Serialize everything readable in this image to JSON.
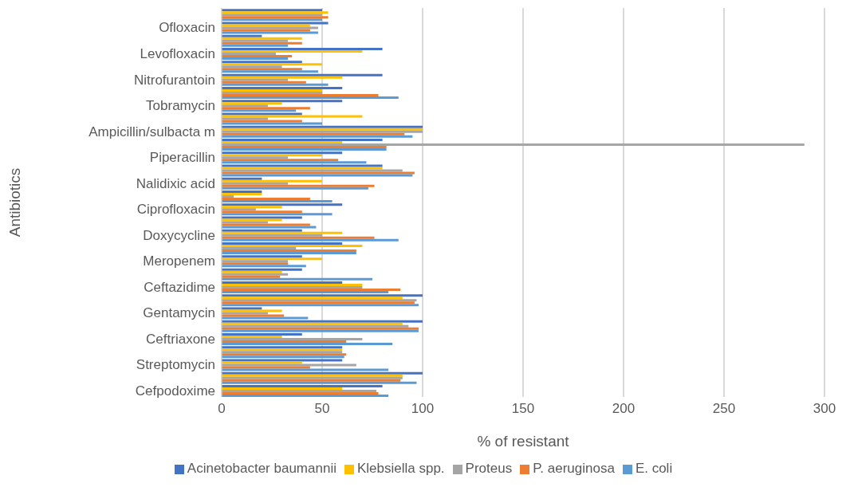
{
  "chart_data": {
    "type": "bar",
    "orientation": "horizontal",
    "xlabel": "% of resistant",
    "ylabel": "Antibiotics",
    "categories": [
      null,
      "Ofloxacin",
      null,
      "Levofloxacin",
      null,
      "Nitrofurantoin",
      null,
      "Tobramycin",
      null,
      "Ampicillin/sulbacta m",
      null,
      "Piperacillin",
      null,
      "Nalidixic acid",
      null,
      "Ciprofloxacin",
      null,
      "Doxycycline",
      null,
      "Meropenem",
      null,
      "Ceftazidime",
      null,
      "Gentamycin",
      null,
      "Ceftriaxone",
      null,
      "Streptomycin",
      null,
      "Cefpodoxime"
    ],
    "series": [
      {
        "name": "Acinetobacter baumannii",
        "color": "#4472c4",
        "values": [
          50,
          53,
          20,
          80,
          40,
          80,
          60,
          60,
          40,
          100,
          80,
          60,
          80,
          20,
          20,
          60,
          40,
          40,
          60,
          40,
          40,
          60,
          100,
          20,
          100,
          40,
          60,
          60,
          100,
          80
        ]
      },
      {
        "name": "Klebsiella spp.",
        "color": "#ffc000",
        "values": [
          53,
          44,
          40,
          70,
          50,
          60,
          50,
          30,
          70,
          100,
          60,
          50,
          80,
          50,
          20,
          30,
          30,
          60,
          70,
          50,
          30,
          70,
          90,
          30,
          90,
          30,
          60,
          40,
          90,
          60
        ]
      },
      {
        "name": "Proteus",
        "color": "#a5a5a5",
        "values": [
          50,
          48,
          33,
          27,
          30,
          33,
          50,
          23,
          23,
          100,
          290,
          33,
          90,
          33,
          6,
          17,
          23,
          50,
          37,
          33,
          33,
          70,
          97,
          23,
          93,
          70,
          60,
          67,
          90,
          77
        ]
      },
      {
        "name": "P. aeruginosa",
        "color": "#ed7d31",
        "values": [
          53,
          44,
          40,
          35,
          40,
          42,
          78,
          44,
          40,
          91,
          82,
          58,
          96,
          76,
          44,
          40,
          44,
          76,
          67,
          33,
          29,
          89,
          96,
          31,
          98,
          62,
          62,
          44,
          89,
          78
        ]
      },
      {
        "name": "E. coli",
        "color": "#5b9bd5",
        "values": [
          50,
          48,
          33,
          33,
          48,
          53,
          88,
          37,
          50,
          95,
          82,
          72,
          95,
          73,
          55,
          55,
          47,
          88,
          67,
          42,
          75,
          83,
          98,
          43,
          98,
          85,
          61,
          83,
          97,
          83
        ]
      }
    ],
    "xlim": [
      0,
      300
    ],
    "xticks": [
      0,
      50,
      100,
      150,
      200,
      250,
      300
    ],
    "grid": "x",
    "legend": "bottom"
  }
}
